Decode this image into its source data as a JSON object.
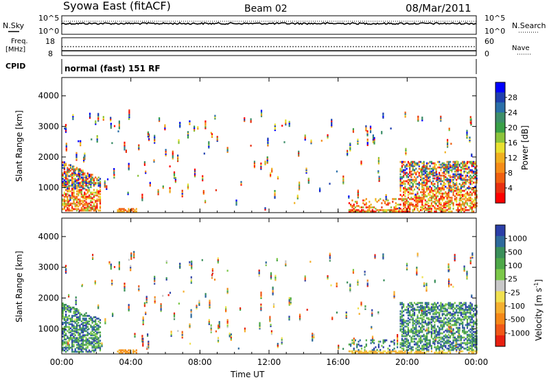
{
  "header": {
    "station": "Syowa East (fitACF)",
    "beam": "Beam 02",
    "date": "08/Mar/2011"
  },
  "sky_panel": {
    "left_label": "N.Sky",
    "right_label": "N.Search",
    "ticks": [
      "10^5",
      "10^0"
    ]
  },
  "freq_panel": {
    "left_label_1": "Freq.",
    "left_label_2": "[MHz]",
    "left_ticks": [
      "18",
      "8"
    ],
    "right_label": "Nave",
    "right_ticks": [
      "60",
      "0"
    ]
  },
  "cpid": {
    "label": "CPID",
    "mode": "normal (fast) 151 RF"
  },
  "chart_data": [
    {
      "type": "heatmap",
      "title": "",
      "xlabel": "",
      "ylabel": "Slant Range [km]",
      "x_ticks": [
        "00:00",
        "04:00",
        "08:00",
        "12:00",
        "16:00",
        "20:00",
        "00:00"
      ],
      "xlim_hours": [
        0,
        24
      ],
      "y_ticks": [
        1000,
        2000,
        3000,
        4000
      ],
      "ylim_km": [
        180,
        4600
      ],
      "colorbar": {
        "label": "Power [dB]",
        "ticks": [
          "4",
          "8",
          "12",
          "16",
          "20",
          "24",
          "28"
        ],
        "colors": [
          "#0000ff",
          "#1f3fae",
          "#2b6fa8",
          "#3e8f6a",
          "#3aa047",
          "#8cc43c",
          "#e8e030",
          "#f0b020",
          "#f58c18",
          "#f06010",
          "#e83010",
          "#ff0000"
        ]
      },
      "scatter_regions": [
        {
          "x": [
            0,
            2.2
          ],
          "y": [
            280,
            1900
          ],
          "intensity": "high"
        },
        {
          "x": [
            16.5,
            24
          ],
          "y": [
            250,
            2000
          ],
          "intensity": "high"
        },
        {
          "x": [
            2.2,
            16.5
          ],
          "y": [
            250,
            3400
          ],
          "intensity": "sparse"
        }
      ]
    },
    {
      "type": "heatmap",
      "title": "",
      "xlabel": "Time UT",
      "ylabel": "Slant Range [km]",
      "x_ticks": [
        "00:00",
        "04:00",
        "08:00",
        "12:00",
        "16:00",
        "20:00",
        "00:00"
      ],
      "xlim_hours": [
        0,
        24
      ],
      "y_ticks": [
        1000,
        2000,
        3000,
        4000
      ],
      "ylim_km": [
        180,
        4600
      ],
      "colorbar": {
        "label": "Velocity  [m s",
        "label_sup": "-1",
        "label_end": "]",
        "ticks": [
          "1000",
          "500",
          "100",
          "25",
          "-25",
          "-100",
          "-500",
          "-1000"
        ],
        "colors": [
          "#2b3fa8",
          "#2e6a9c",
          "#3a8f5a",
          "#4ea848",
          "#7cc84a",
          "#c8c8c8",
          "#f0e050",
          "#f5b030",
          "#f58818",
          "#f05818",
          "#e82010"
        ]
      }
    }
  ]
}
